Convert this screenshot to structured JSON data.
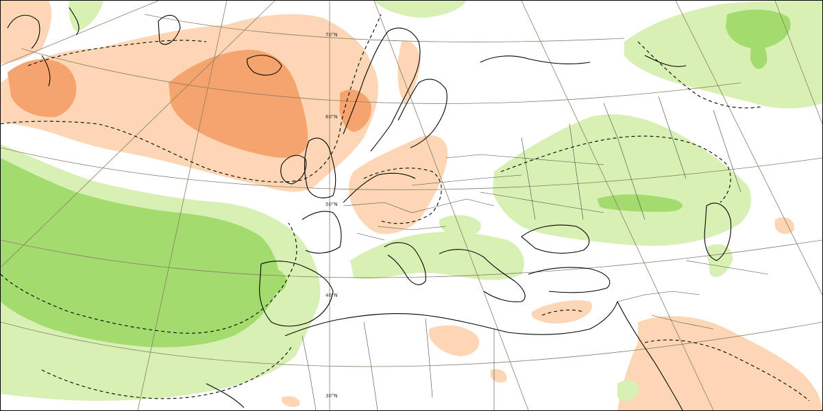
{
  "map": {
    "type": "weather-anomaly-map",
    "colors": {
      "warm_light": "#fcd6b5",
      "warm_strong": "#f6a46d",
      "wet_light": "#d8f0b4",
      "wet_strong": "#a3db6e",
      "graticule": "#8a7a66",
      "coast": "#000000"
    },
    "latitude_labels": [
      {
        "id": "lat-70",
        "text": "70°N"
      },
      {
        "id": "lat-60",
        "text": "60°N"
      },
      {
        "id": "lat-50",
        "text": "50°N"
      },
      {
        "id": "lat-40",
        "text": "40°N"
      },
      {
        "id": "lat-30",
        "text": "30°N"
      }
    ]
  }
}
